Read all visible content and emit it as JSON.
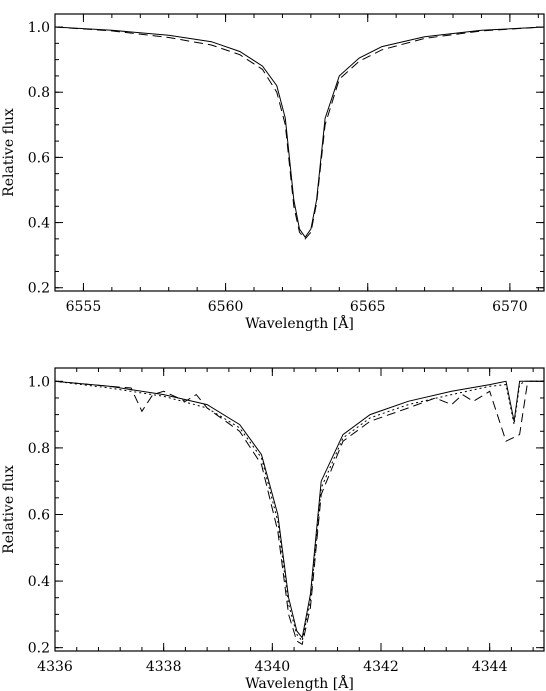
{
  "chart_data": [
    {
      "type": "line",
      "xlabel": "Wavelength [Å]",
      "ylabel": "Relative flux",
      "xlim": [
        6554.0,
        6571.2
      ],
      "ylim": [
        0.19,
        1.04
      ],
      "xticks": [
        6555,
        6560,
        6565,
        6570
      ],
      "yticks": [
        0.2,
        0.4,
        0.6,
        0.8,
        1.0
      ],
      "xtick_labels": [
        "6555",
        "6560",
        "6565",
        "6570"
      ],
      "ytick_labels": [
        "0.2",
        "0.4",
        "0.6",
        "0.8",
        "1.0"
      ],
      "grid": false,
      "series": [
        {
          "style": "solid",
          "x": [
            6554.0,
            6556.0,
            6558.0,
            6559.5,
            6560.5,
            6561.3,
            6561.8,
            6562.1,
            6562.4,
            6562.6,
            6562.8,
            6563.0,
            6563.2,
            6563.5,
            6564.0,
            6564.7,
            6565.5,
            6567.0,
            6569.0,
            6571.2
          ],
          "y": [
            1.0,
            0.99,
            0.975,
            0.955,
            0.925,
            0.88,
            0.82,
            0.72,
            0.47,
            0.38,
            0.355,
            0.38,
            0.47,
            0.72,
            0.85,
            0.905,
            0.94,
            0.97,
            0.99,
            1.0
          ]
        },
        {
          "style": "dashed",
          "x": [
            6554.0,
            6556.0,
            6558.0,
            6559.5,
            6560.5,
            6561.3,
            6561.8,
            6562.1,
            6562.4,
            6562.6,
            6562.8,
            6563.0,
            6563.2,
            6563.5,
            6564.0,
            6564.7,
            6565.5,
            6567.0,
            6569.0,
            6571.2
          ],
          "y": [
            1.0,
            0.988,
            0.968,
            0.945,
            0.915,
            0.87,
            0.8,
            0.7,
            0.45,
            0.37,
            0.35,
            0.37,
            0.46,
            0.7,
            0.84,
            0.895,
            0.93,
            0.965,
            0.988,
            1.0
          ]
        }
      ]
    },
    {
      "type": "line",
      "xlabel": "Wavelength [Å]",
      "ylabel": "Relative flux",
      "xlim": [
        4336.0,
        4345.0
      ],
      "ylim": [
        0.19,
        1.04
      ],
      "xticks": [
        4336,
        4338,
        4340,
        4342,
        4344
      ],
      "yticks": [
        0.2,
        0.4,
        0.6,
        0.8,
        1.0
      ],
      "xtick_labels": [
        "4336",
        "4338",
        "4340",
        "4342",
        "4344"
      ],
      "ytick_labels": [
        "0.2",
        "0.4",
        "0.6",
        "0.8",
        "1.0"
      ],
      "grid": false,
      "series": [
        {
          "style": "solid",
          "x": [
            4336.0,
            4337.0,
            4338.0,
            4338.8,
            4339.4,
            4339.8,
            4340.1,
            4340.3,
            4340.45,
            4340.55,
            4340.7,
            4340.9,
            4341.3,
            4341.8,
            4342.5,
            4343.3,
            4344.0,
            4344.3,
            4344.45,
            4344.55,
            4344.65,
            4345.0
          ],
          "y": [
            1.0,
            0.985,
            0.96,
            0.93,
            0.87,
            0.78,
            0.6,
            0.35,
            0.25,
            0.23,
            0.36,
            0.7,
            0.84,
            0.9,
            0.94,
            0.97,
            0.99,
            1.0,
            0.88,
            1.0,
            1.0,
            1.0
          ]
        },
        {
          "style": "dotted",
          "x": [
            4336.0,
            4337.0,
            4338.0,
            4338.8,
            4339.4,
            4339.8,
            4340.1,
            4340.3,
            4340.45,
            4340.55,
            4340.7,
            4340.9,
            4341.3,
            4341.8,
            4342.5,
            4343.3,
            4344.0,
            4344.3,
            4344.45,
            4344.55,
            4344.65,
            4345.0
          ],
          "y": [
            1.0,
            0.98,
            0.955,
            0.92,
            0.86,
            0.77,
            0.58,
            0.33,
            0.24,
            0.22,
            0.34,
            0.68,
            0.83,
            0.89,
            0.93,
            0.96,
            0.985,
            0.99,
            0.87,
            0.99,
            1.0,
            1.0
          ]
        },
        {
          "style": "dashed",
          "x": [
            4336.0,
            4337.0,
            4337.4,
            4337.6,
            4337.8,
            4338.0,
            4338.4,
            4338.6,
            4338.8,
            4339.4,
            4339.8,
            4340.1,
            4340.3,
            4340.45,
            4340.55,
            4340.7,
            4340.9,
            4341.3,
            4341.8,
            4342.5,
            4343.0,
            4343.3,
            4343.5,
            4343.7,
            4344.0,
            4344.3,
            4344.55,
            4344.7,
            4345.0
          ],
          "y": [
            1.0,
            0.985,
            0.98,
            0.91,
            0.96,
            0.97,
            0.94,
            0.96,
            0.92,
            0.85,
            0.75,
            0.55,
            0.3,
            0.22,
            0.21,
            0.32,
            0.66,
            0.82,
            0.88,
            0.92,
            0.95,
            0.93,
            0.96,
            0.94,
            0.97,
            0.82,
            0.84,
            1.0,
            1.0
          ]
        }
      ]
    }
  ]
}
